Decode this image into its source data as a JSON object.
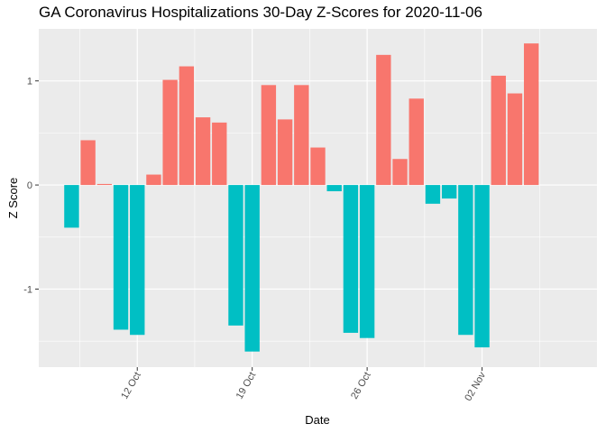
{
  "chart_data": {
    "type": "bar",
    "title": "GA Coronavirus Hospitalizations 30-Day Z-Scores for 2020-11-06",
    "xlabel": "Date",
    "ylabel": "Z Score",
    "x_ticks": [
      {
        "date": "2020-10-12",
        "label": "12 Oct"
      },
      {
        "date": "2020-10-19",
        "label": "19 Oct"
      },
      {
        "date": "2020-10-26",
        "label": "26 Oct"
      },
      {
        "date": "2020-11-02",
        "label": "02 Nov"
      }
    ],
    "y_ticks": [
      -1,
      0,
      1
    ],
    "xlim": [
      "2020-10-06",
      "2020-11-09"
    ],
    "ylim": [
      -1.75,
      1.5
    ],
    "grid": true,
    "legend": "none",
    "colors": {
      "positive": "#F8766D",
      "negative": "#00BFC4"
    },
    "dates": [
      "2020-10-08",
      "2020-10-09",
      "2020-10-10",
      "2020-10-11",
      "2020-10-12",
      "2020-10-13",
      "2020-10-14",
      "2020-10-15",
      "2020-10-16",
      "2020-10-17",
      "2020-10-18",
      "2020-10-19",
      "2020-10-20",
      "2020-10-21",
      "2020-10-22",
      "2020-10-23",
      "2020-10-24",
      "2020-10-25",
      "2020-10-26",
      "2020-10-27",
      "2020-10-28",
      "2020-10-29",
      "2020-10-30",
      "2020-10-31",
      "2020-11-01",
      "2020-11-02",
      "2020-11-03",
      "2020-11-04",
      "2020-11-05",
      "2020-11-06"
    ],
    "values": [
      -0.41,
      0.43,
      0.01,
      -1.39,
      -1.44,
      0.1,
      1.01,
      1.14,
      0.65,
      0.6,
      -1.35,
      -1.6,
      0.96,
      0.63,
      0.96,
      0.36,
      -0.06,
      -1.42,
      -1.47,
      1.25,
      0.25,
      0.83,
      -0.18,
      -0.13,
      -1.44,
      -1.56,
      1.05,
      0.88,
      1.36,
      0.0
    ]
  }
}
